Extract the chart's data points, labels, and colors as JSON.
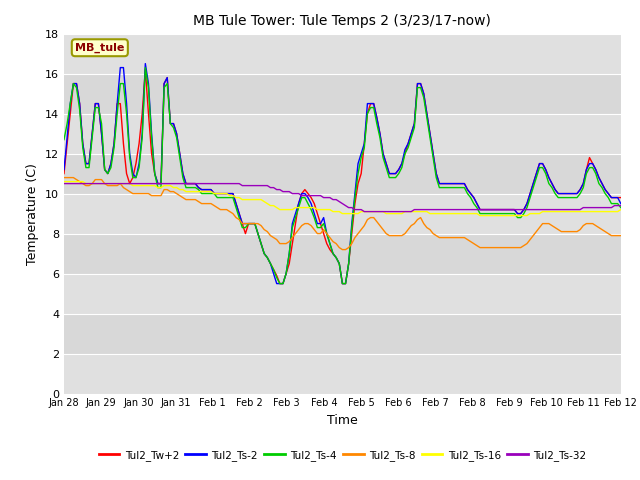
{
  "title": "MB Tule Tower: Tule Temps 2 (3/23/17-now)",
  "xlabel": "Time",
  "ylabel": "Temperature (C)",
  "ylim": [
    0,
    18
  ],
  "yticks": [
    0,
    2,
    4,
    6,
    8,
    10,
    12,
    14,
    16,
    18
  ],
  "legend_label": "MB_tule",
  "series_colors": {
    "Tul2_Tw+2": "#ff0000",
    "Tul2_Ts-2": "#0000ff",
    "Tul2_Ts-4": "#00cc00",
    "Tul2_Ts-8": "#ff8800",
    "Tul2_Ts-16": "#ffff00",
    "Tul2_Ts-32": "#9900bb"
  },
  "x_tick_labels": [
    "Jan 28",
    "Jan 29",
    "Jan 30",
    "Jan 31",
    "Feb 1",
    "Feb 2",
    "Feb 3",
    "Feb 4",
    "Feb 5",
    "Feb 6",
    "Feb 7",
    "Feb 8",
    "Feb 9",
    "Feb 10",
    "Feb 11",
    "Feb 12"
  ],
  "series": {
    "Tul2_Tw+2": [
      11.0,
      12.5,
      14.0,
      15.5,
      15.5,
      14.5,
      12.5,
      11.5,
      11.5,
      13.0,
      14.5,
      14.5,
      13.0,
      11.2,
      11.0,
      11.5,
      12.5,
      14.5,
      14.5,
      12.5,
      11.0,
      10.5,
      10.8,
      11.5,
      12.5,
      14.0,
      16.2,
      14.0,
      12.0,
      11.0,
      10.5,
      10.5,
      15.5,
      15.8,
      13.5,
      13.5,
      13.0,
      12.0,
      11.0,
      10.5,
      10.5,
      10.5,
      10.5,
      10.3,
      10.2,
      10.2,
      10.2,
      10.2,
      10.0,
      10.0,
      10.0,
      10.0,
      10.0,
      10.0,
      10.0,
      9.5,
      9.0,
      8.5,
      8.0,
      8.5,
      8.5,
      8.5,
      8.0,
      7.5,
      7.0,
      6.8,
      6.5,
      6.2,
      5.9,
      5.5,
      5.5,
      6.0,
      6.5,
      7.5,
      8.5,
      9.5,
      10.0,
      10.2,
      10.0,
      9.8,
      9.5,
      9.0,
      8.5,
      8.0,
      7.5,
      7.2,
      7.0,
      6.8,
      6.5,
      5.5,
      5.5,
      6.5,
      8.0,
      9.5,
      10.5,
      11.0,
      12.5,
      14.0,
      14.5,
      14.5,
      13.8,
      13.0,
      12.0,
      11.5,
      11.0,
      11.0,
      11.0,
      11.2,
      11.5,
      12.0,
      12.5,
      13.0,
      13.5,
      15.5,
      15.5,
      15.0,
      14.0,
      13.0,
      12.0,
      11.0,
      10.5,
      10.5,
      10.5,
      10.5,
      10.5,
      10.5,
      10.5,
      10.5,
      10.5,
      10.2,
      10.0,
      9.8,
      9.5,
      9.2,
      9.2,
      9.2,
      9.2,
      9.2,
      9.2,
      9.2,
      9.2,
      9.2,
      9.2,
      9.2,
      9.2,
      9.0,
      9.0,
      9.2,
      9.5,
      10.0,
      10.5,
      11.0,
      11.5,
      11.5,
      11.2,
      10.8,
      10.5,
      10.2,
      10.0,
      10.0,
      10.0,
      10.0,
      10.0,
      10.0,
      10.0,
      10.2,
      10.5,
      11.2,
      11.8,
      11.5,
      11.2,
      10.8,
      10.5,
      10.2,
      10.0,
      9.8,
      9.8,
      9.8,
      9.8
    ],
    "Tul2_Ts-2": [
      11.2,
      12.8,
      14.5,
      15.5,
      15.5,
      14.5,
      12.5,
      11.5,
      11.5,
      13.0,
      14.5,
      14.5,
      13.0,
      11.2,
      11.0,
      11.5,
      12.5,
      14.5,
      16.3,
      16.3,
      14.5,
      12.0,
      11.0,
      10.8,
      11.5,
      13.0,
      16.5,
      15.5,
      13.0,
      11.0,
      10.5,
      10.5,
      15.5,
      15.8,
      13.5,
      13.5,
      13.0,
      12.0,
      11.0,
      10.5,
      10.5,
      10.5,
      10.5,
      10.3,
      10.2,
      10.2,
      10.2,
      10.2,
      10.0,
      10.0,
      10.0,
      10.0,
      10.0,
      10.0,
      10.0,
      9.5,
      9.0,
      8.5,
      8.5,
      8.5,
      8.5,
      8.5,
      8.0,
      7.5,
      7.0,
      6.8,
      6.5,
      6.0,
      5.5,
      5.5,
      5.5,
      6.0,
      7.0,
      8.5,
      9.0,
      9.5,
      10.0,
      10.0,
      9.8,
      9.5,
      9.0,
      8.5,
      8.5,
      8.8,
      8.0,
      7.5,
      7.0,
      6.8,
      6.5,
      5.5,
      5.5,
      6.5,
      8.5,
      10.0,
      11.5,
      12.0,
      12.5,
      14.5,
      14.5,
      14.5,
      13.8,
      13.0,
      12.0,
      11.5,
      11.0,
      11.0,
      11.0,
      11.2,
      11.5,
      12.2,
      12.5,
      13.0,
      13.5,
      15.5,
      15.5,
      15.0,
      14.0,
      13.0,
      12.0,
      11.0,
      10.5,
      10.5,
      10.5,
      10.5,
      10.5,
      10.5,
      10.5,
      10.5,
      10.5,
      10.2,
      10.0,
      9.8,
      9.5,
      9.2,
      9.2,
      9.2,
      9.2,
      9.2,
      9.2,
      9.2,
      9.2,
      9.2,
      9.2,
      9.2,
      9.2,
      9.0,
      9.0,
      9.2,
      9.5,
      10.0,
      10.5,
      11.0,
      11.5,
      11.5,
      11.2,
      10.8,
      10.5,
      10.2,
      10.0,
      10.0,
      10.0,
      10.0,
      10.0,
      10.0,
      10.0,
      10.2,
      10.5,
      11.2,
      11.5,
      11.5,
      11.2,
      10.8,
      10.5,
      10.2,
      10.0,
      9.8,
      9.8,
      9.8,
      9.5
    ],
    "Tul2_Ts-4": [
      12.7,
      13.5,
      14.5,
      15.5,
      15.3,
      14.2,
      12.3,
      11.3,
      11.3,
      12.8,
      14.3,
      14.3,
      13.5,
      11.2,
      11.0,
      11.3,
      12.3,
      14.0,
      15.5,
      15.5,
      14.0,
      11.8,
      10.8,
      10.8,
      11.3,
      12.8,
      16.3,
      15.3,
      12.8,
      11.0,
      10.3,
      10.3,
      15.3,
      15.5,
      13.5,
      13.3,
      12.8,
      11.8,
      10.8,
      10.3,
      10.3,
      10.3,
      10.3,
      10.2,
      10.0,
      10.0,
      10.0,
      10.0,
      10.0,
      9.8,
      9.8,
      9.8,
      9.8,
      9.8,
      9.8,
      9.3,
      8.8,
      8.3,
      8.3,
      8.5,
      8.5,
      8.5,
      8.0,
      7.5,
      7.0,
      6.8,
      6.5,
      6.2,
      5.8,
      5.5,
      5.5,
      6.0,
      7.0,
      8.3,
      8.8,
      9.3,
      9.8,
      9.8,
      9.5,
      9.2,
      8.8,
      8.3,
      8.3,
      8.5,
      8.0,
      7.5,
      7.0,
      6.8,
      6.5,
      5.5,
      5.5,
      6.5,
      8.3,
      9.8,
      11.0,
      11.8,
      12.3,
      14.0,
      14.3,
      14.3,
      13.5,
      12.8,
      11.8,
      11.3,
      10.8,
      10.8,
      10.8,
      11.0,
      11.3,
      12.0,
      12.3,
      12.8,
      13.3,
      15.3,
      15.3,
      14.8,
      13.8,
      12.8,
      11.8,
      10.8,
      10.3,
      10.3,
      10.3,
      10.3,
      10.3,
      10.3,
      10.3,
      10.3,
      10.3,
      10.0,
      9.8,
      9.5,
      9.3,
      9.0,
      9.0,
      9.0,
      9.0,
      9.0,
      9.0,
      9.0,
      9.0,
      9.0,
      9.0,
      9.0,
      9.0,
      8.8,
      8.8,
      9.0,
      9.3,
      9.8,
      10.3,
      10.8,
      11.3,
      11.3,
      11.0,
      10.5,
      10.3,
      10.0,
      9.8,
      9.8,
      9.8,
      9.8,
      9.8,
      9.8,
      9.8,
      10.0,
      10.3,
      11.0,
      11.3,
      11.3,
      11.0,
      10.5,
      10.3,
      10.0,
      9.8,
      9.5,
      9.5,
      9.5,
      9.3
    ],
    "Tul2_Ts-8": [
      10.8,
      10.8,
      10.8,
      10.8,
      10.7,
      10.6,
      10.5,
      10.4,
      10.4,
      10.5,
      10.7,
      10.7,
      10.7,
      10.5,
      10.4,
      10.4,
      10.4,
      10.4,
      10.5,
      10.3,
      10.2,
      10.1,
      10.0,
      10.0,
      10.0,
      10.0,
      10.0,
      10.0,
      9.9,
      9.9,
      9.9,
      9.9,
      10.2,
      10.2,
      10.1,
      10.1,
      10.0,
      9.9,
      9.8,
      9.7,
      9.7,
      9.7,
      9.7,
      9.6,
      9.5,
      9.5,
      9.5,
      9.5,
      9.4,
      9.3,
      9.2,
      9.2,
      9.2,
      9.1,
      9.0,
      8.8,
      8.7,
      8.5,
      8.5,
      8.5,
      8.5,
      8.5,
      8.5,
      8.4,
      8.2,
      8.1,
      7.9,
      7.8,
      7.7,
      7.5,
      7.5,
      7.5,
      7.6,
      7.8,
      8.0,
      8.2,
      8.4,
      8.5,
      8.5,
      8.4,
      8.2,
      8.0,
      8.0,
      8.2,
      8.0,
      7.8,
      7.6,
      7.5,
      7.3,
      7.2,
      7.2,
      7.3,
      7.5,
      7.8,
      8.0,
      8.2,
      8.4,
      8.7,
      8.8,
      8.8,
      8.6,
      8.4,
      8.2,
      8.0,
      7.9,
      7.9,
      7.9,
      7.9,
      7.9,
      8.0,
      8.2,
      8.4,
      8.5,
      8.7,
      8.8,
      8.5,
      8.3,
      8.2,
      8.0,
      7.9,
      7.8,
      7.8,
      7.8,
      7.8,
      7.8,
      7.8,
      7.8,
      7.8,
      7.8,
      7.7,
      7.6,
      7.5,
      7.4,
      7.3,
      7.3,
      7.3,
      7.3,
      7.3,
      7.3,
      7.3,
      7.3,
      7.3,
      7.3,
      7.3,
      7.3,
      7.3,
      7.3,
      7.4,
      7.5,
      7.7,
      7.9,
      8.1,
      8.3,
      8.5,
      8.5,
      8.5,
      8.4,
      8.3,
      8.2,
      8.1,
      8.1,
      8.1,
      8.1,
      8.1,
      8.1,
      8.2,
      8.4,
      8.5,
      8.5,
      8.5,
      8.4,
      8.3,
      8.2,
      8.1,
      8.0,
      7.9,
      7.9,
      7.9,
      7.9
    ],
    "Tul2_Ts-16": [
      10.6,
      10.6,
      10.6,
      10.6,
      10.6,
      10.6,
      10.6,
      10.5,
      10.5,
      10.5,
      10.5,
      10.5,
      10.5,
      10.5,
      10.5,
      10.5,
      10.5,
      10.5,
      10.5,
      10.5,
      10.5,
      10.5,
      10.4,
      10.4,
      10.4,
      10.4,
      10.4,
      10.4,
      10.4,
      10.4,
      10.3,
      10.3,
      10.4,
      10.4,
      10.4,
      10.3,
      10.3,
      10.2,
      10.2,
      10.1,
      10.1,
      10.1,
      10.1,
      10.1,
      10.1,
      10.1,
      10.1,
      10.1,
      10.0,
      10.0,
      10.0,
      10.0,
      10.0,
      9.9,
      9.9,
      9.8,
      9.8,
      9.7,
      9.7,
      9.7,
      9.7,
      9.7,
      9.7,
      9.7,
      9.6,
      9.5,
      9.4,
      9.4,
      9.3,
      9.2,
      9.2,
      9.2,
      9.2,
      9.2,
      9.3,
      9.3,
      9.3,
      9.3,
      9.3,
      9.3,
      9.3,
      9.2,
      9.2,
      9.2,
      9.2,
      9.2,
      9.1,
      9.1,
      9.1,
      9.0,
      9.0,
      9.0,
      9.0,
      9.0,
      9.0,
      9.1,
      9.1,
      9.1,
      9.1,
      9.1,
      9.1,
      9.1,
      9.1,
      9.0,
      9.0,
      9.0,
      9.0,
      9.0,
      9.0,
      9.1,
      9.1,
      9.1,
      9.1,
      9.1,
      9.1,
      9.1,
      9.1,
      9.0,
      9.0,
      9.0,
      9.0,
      9.0,
      9.0,
      9.0,
      9.0,
      9.0,
      9.0,
      9.0,
      9.0,
      9.0,
      9.0,
      9.0,
      9.0,
      8.9,
      8.9,
      8.9,
      8.9,
      8.9,
      8.9,
      8.9,
      8.9,
      8.9,
      8.9,
      8.9,
      8.9,
      8.9,
      8.9,
      8.9,
      8.9,
      9.0,
      9.0,
      9.0,
      9.0,
      9.1,
      9.1,
      9.1,
      9.1,
      9.1,
      9.1,
      9.1,
      9.1,
      9.1,
      9.1,
      9.1,
      9.1,
      9.1,
      9.1,
      9.1,
      9.1,
      9.1,
      9.1,
      9.1,
      9.1,
      9.1,
      9.1,
      9.1,
      9.1,
      9.1,
      9.2
    ],
    "Tul2_Ts-32": [
      10.5,
      10.5,
      10.5,
      10.5,
      10.5,
      10.5,
      10.5,
      10.5,
      10.5,
      10.5,
      10.5,
      10.5,
      10.5,
      10.5,
      10.5,
      10.5,
      10.5,
      10.5,
      10.5,
      10.5,
      10.5,
      10.5,
      10.5,
      10.5,
      10.5,
      10.5,
      10.5,
      10.5,
      10.5,
      10.5,
      10.5,
      10.5,
      10.5,
      10.5,
      10.5,
      10.5,
      10.5,
      10.5,
      10.5,
      10.5,
      10.5,
      10.5,
      10.5,
      10.5,
      10.5,
      10.5,
      10.5,
      10.5,
      10.5,
      10.5,
      10.5,
      10.5,
      10.5,
      10.5,
      10.5,
      10.5,
      10.5,
      10.4,
      10.4,
      10.4,
      10.4,
      10.4,
      10.4,
      10.4,
      10.4,
      10.4,
      10.3,
      10.3,
      10.2,
      10.2,
      10.1,
      10.1,
      10.1,
      10.0,
      10.0,
      10.0,
      9.9,
      9.9,
      9.9,
      9.9,
      9.9,
      9.9,
      9.9,
      9.8,
      9.8,
      9.8,
      9.7,
      9.7,
      9.6,
      9.5,
      9.4,
      9.3,
      9.3,
      9.2,
      9.2,
      9.2,
      9.1,
      9.1,
      9.1,
      9.1,
      9.1,
      9.1,
      9.1,
      9.1,
      9.1,
      9.1,
      9.1,
      9.1,
      9.1,
      9.1,
      9.1,
      9.1,
      9.2,
      9.2,
      9.2,
      9.2,
      9.2,
      9.2,
      9.2,
      9.2,
      9.2,
      9.2,
      9.2,
      9.2,
      9.2,
      9.2,
      9.2,
      9.2,
      9.2,
      9.2,
      9.2,
      9.2,
      9.2,
      9.2,
      9.2,
      9.2,
      9.2,
      9.2,
      9.2,
      9.2,
      9.2,
      9.2,
      9.2,
      9.2,
      9.2,
      9.2,
      9.2,
      9.2,
      9.2,
      9.2,
      9.2,
      9.2,
      9.2,
      9.2,
      9.2,
      9.2,
      9.2,
      9.2,
      9.2,
      9.2,
      9.2,
      9.2,
      9.2,
      9.2,
      9.2,
      9.2,
      9.3,
      9.3,
      9.3,
      9.3,
      9.3,
      9.3,
      9.3,
      9.3,
      9.3,
      9.3,
      9.4,
      9.4,
      9.4
    ]
  }
}
